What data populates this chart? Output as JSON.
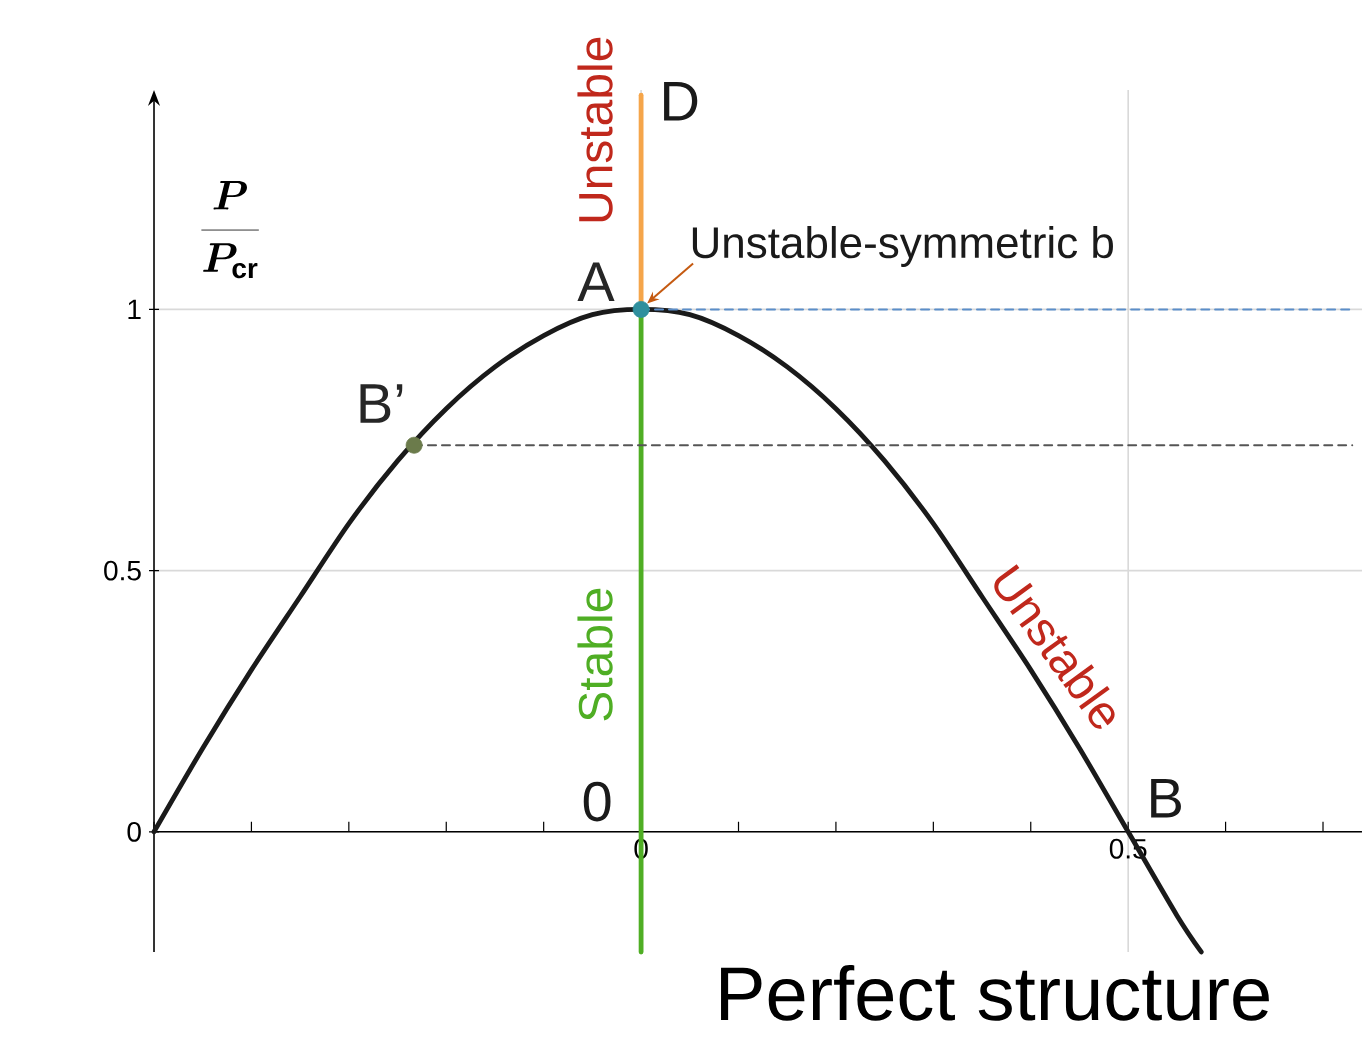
{
  "chart_data": {
    "type": "line",
    "ylabel": "\\frac{P}{P_{\\mathrm{cr}}}",
    "xlim": [
      -0.5,
      0.74
    ],
    "ylim": [
      -0.23,
      1.42
    ],
    "xticks": [
      {
        "value": -0.5,
        "label": null
      },
      {
        "value": -0.4,
        "label": null
      },
      {
        "value": -0.3,
        "label": null
      },
      {
        "value": -0.2,
        "label": null
      },
      {
        "value": -0.1,
        "label": null
      },
      0,
      {
        "value": 0.1,
        "label": null
      },
      {
        "value": 0.2,
        "label": null
      },
      {
        "value": 0.3,
        "label": null
      },
      {
        "value": 0.4,
        "label": null
      },
      0.5,
      {
        "value": 0.6,
        "label": null
      },
      {
        "value": 0.7,
        "label": null
      }
    ],
    "yticks": [
      0,
      0.5,
      1
    ],
    "grid": true,
    "series": [
      {
        "color": "#1a1a1a",
        "x": [
          -0.5,
          -0.45,
          -0.4,
          -0.35,
          -0.3,
          -0.25,
          -0.2,
          -0.15,
          -0.1,
          -0.05,
          0,
          0.05,
          0.1,
          0.15,
          0.2,
          0.25,
          0.3,
          0.35,
          0.4,
          0.45,
          0.5,
          0.55,
          0.575
        ],
        "values": [
          0,
          0.16,
          0.31,
          0.45,
          0.59,
          0.71,
          0.81,
          0.89,
          0.95,
          0.99,
          1,
          0.99,
          0.95,
          0.89,
          0.81,
          0.71,
          0.59,
          0.45,
          0.31,
          0.16,
          0,
          -0.16,
          -0.23
        ]
      },
      {
        "name": "Stable",
        "color": "#4fae24",
        "x": [
          0,
          0
        ],
        "values": [
          -0.23,
          1
        ]
      },
      {
        "name": "Unstable",
        "color": "#f5a54a",
        "x": [
          0,
          0
        ],
        "values": [
          1,
          1.41
        ]
      },
      {
        "color": "#5b8ec9",
        "line_style": "dashed",
        "x": [
          0,
          0.73
        ],
        "values": [
          1,
          1
        ]
      },
      {
        "color": "#555555",
        "line_style": "dashed",
        "x": [
          -0.233,
          0.73
        ],
        "values": [
          0.74,
          0.74
        ]
      },
      {
        "type": "scatter",
        "marker": "circle",
        "x": [
          0,
          -0.233
        ],
        "values": [
          1,
          0.74
        ],
        "colors": [
          "#2f8f9d",
          "#6b7b4b"
        ]
      }
    ],
    "annotations": [
      {
        "text": "A",
        "x": 0,
        "y": 1
      },
      {
        "text": "B’",
        "x": -0.233,
        "y": 0.74
      },
      {
        "text": "D",
        "x": 0,
        "y": 1.41
      },
      {
        "text": "0",
        "x": 0,
        "y": 0
      },
      {
        "text": "B",
        "x": 0.5,
        "y": 0
      },
      {
        "text": "Unstable",
        "x": 0.4,
        "y": 0.31
      },
      {
        "text": "Unstable-symmetric b",
        "x": 0,
        "y": 1
      },
      "Perfect structure"
    ]
  }
}
